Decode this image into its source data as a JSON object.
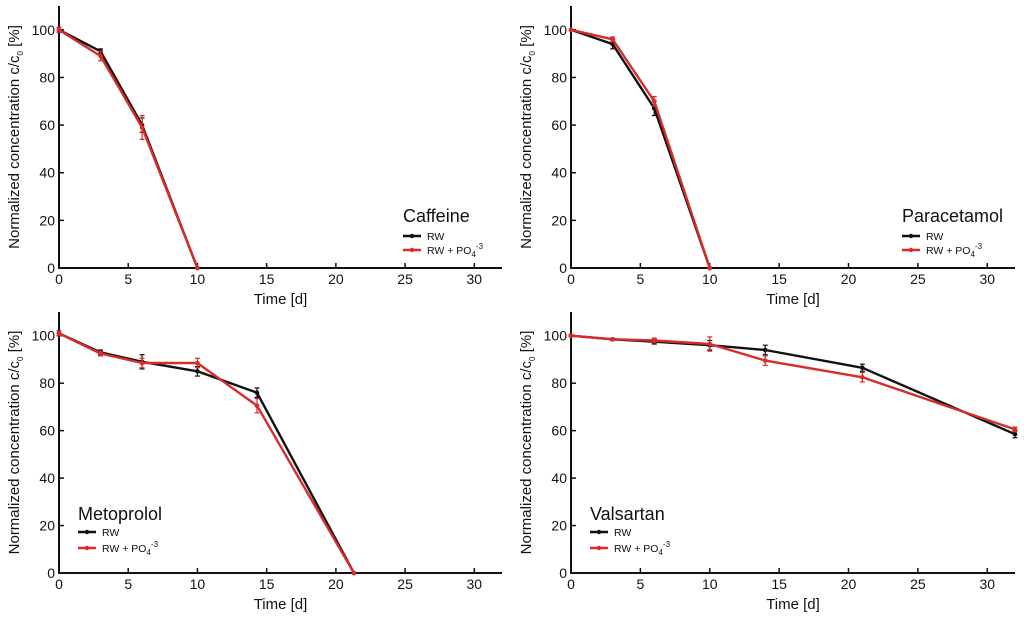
{
  "colors": {
    "rw": "#111111",
    "rw_po4": "#d92b2b",
    "axis": "#111111"
  },
  "chart_data": [
    {
      "id": "caffeine",
      "type": "line",
      "title": "Caffeine",
      "xlabel": "Time [d]",
      "ylabel_main": "Normalized concentration c/c",
      "ylabel_sub": "0",
      "ylabel_unit": " [%]",
      "xlim": [
        0,
        32
      ],
      "ylim": [
        0,
        110
      ],
      "xticks": [
        0,
        5,
        10,
        15,
        20,
        25,
        30
      ],
      "yticks": [
        0,
        20,
        40,
        60,
        80,
        100
      ],
      "legend_position": "right",
      "series": [
        {
          "name": "RW",
          "color": "#111111",
          "x": [
            0,
            3,
            6,
            10
          ],
          "y": [
            100,
            91,
            60,
            0
          ],
          "err": [
            1,
            1,
            3,
            0
          ]
        },
        {
          "name": "RW + PO4-3",
          "label_main": "RW + PO",
          "label_sub": "4",
          "label_sup": "-3",
          "color": "#d92b2b",
          "x": [
            0,
            3,
            6,
            10
          ],
          "y": [
            100,
            89,
            59,
            0
          ],
          "err": [
            1,
            2,
            5,
            0
          ]
        }
      ]
    },
    {
      "id": "paracetamol",
      "type": "line",
      "title": "Paracetamol",
      "xlabel": "Time [d]",
      "ylabel_main": "Normalized concentration c/c",
      "ylabel_sub": "0",
      "ylabel_unit": " [%]",
      "xlim": [
        0,
        32
      ],
      "ylim": [
        0,
        110
      ],
      "xticks": [
        0,
        5,
        10,
        15,
        20,
        25,
        30
      ],
      "yticks": [
        0,
        20,
        40,
        60,
        80,
        100
      ],
      "legend_position": "right",
      "series": [
        {
          "name": "RW",
          "color": "#111111",
          "x": [
            0,
            3,
            6,
            10
          ],
          "y": [
            100,
            94,
            67,
            0
          ],
          "err": [
            0,
            2,
            3,
            0
          ]
        },
        {
          "name": "RW + PO4-3",
          "label_main": "RW + PO",
          "label_sub": "4",
          "label_sup": "-3",
          "color": "#d92b2b",
          "x": [
            0,
            3,
            6,
            10
          ],
          "y": [
            100,
            96,
            70,
            0
          ],
          "err": [
            0,
            1,
            2,
            0
          ]
        }
      ]
    },
    {
      "id": "metoprolol",
      "type": "line",
      "title": "Metoprolol",
      "xlabel": "Time [d]",
      "ylabel_main": "Normalized concentration c/c",
      "ylabel_sub": "0",
      "ylabel_unit": " [%]",
      "xlim": [
        0,
        32
      ],
      "ylim": [
        0,
        110
      ],
      "xticks": [
        0,
        5,
        10,
        15,
        20,
        25,
        30
      ],
      "yticks": [
        0,
        20,
        40,
        60,
        80,
        100
      ],
      "legend_position": "left",
      "series": [
        {
          "name": "RW",
          "color": "#111111",
          "x": [
            0,
            3,
            6,
            10,
            14.3,
            21.3
          ],
          "y": [
            101,
            93,
            89,
            85,
            76,
            0
          ],
          "err": [
            1,
            1,
            3,
            2,
            2,
            0
          ]
        },
        {
          "name": "RW + PO4-3",
          "label_main": "RW + PO",
          "label_sub": "4",
          "label_sup": "-3",
          "color": "#d92b2b",
          "x": [
            0,
            3,
            6,
            10,
            14.3,
            21.3
          ],
          "y": [
            101,
            92.5,
            88.5,
            88.5,
            70.5,
            0
          ],
          "err": [
            1,
            1,
            2,
            2,
            3,
            0
          ]
        }
      ]
    },
    {
      "id": "valsartan",
      "type": "line",
      "title": "Valsartan",
      "xlabel": "Time [d]",
      "ylabel_main": "Normalized concentration c/c",
      "ylabel_sub": "0",
      "ylabel_unit": " [%]",
      "xlim": [
        0,
        32
      ],
      "ylim": [
        0,
        110
      ],
      "xticks": [
        0,
        5,
        10,
        15,
        20,
        25,
        30
      ],
      "yticks": [
        0,
        20,
        40,
        60,
        80,
        100
      ],
      "legend_position": "left",
      "series": [
        {
          "name": "RW",
          "color": "#111111",
          "x": [
            0,
            3,
            6,
            10,
            14,
            21,
            32
          ],
          "y": [
            100,
            98.5,
            97.5,
            96,
            94,
            86.5,
            58.5
          ],
          "err": [
            0.5,
            0.5,
            1,
            2,
            2,
            1.5,
            1.5
          ]
        },
        {
          "name": "RW + PO4-3",
          "label_main": "RW + PO",
          "label_sub": "4",
          "label_sup": "-3",
          "color": "#d92b2b",
          "x": [
            0,
            3,
            6,
            10,
            14,
            21,
            32
          ],
          "y": [
            100,
            98.5,
            98,
            96.5,
            89.5,
            82.5,
            60.5
          ],
          "err": [
            0.5,
            0.5,
            1,
            3,
            2,
            2,
            1
          ]
        }
      ]
    }
  ]
}
